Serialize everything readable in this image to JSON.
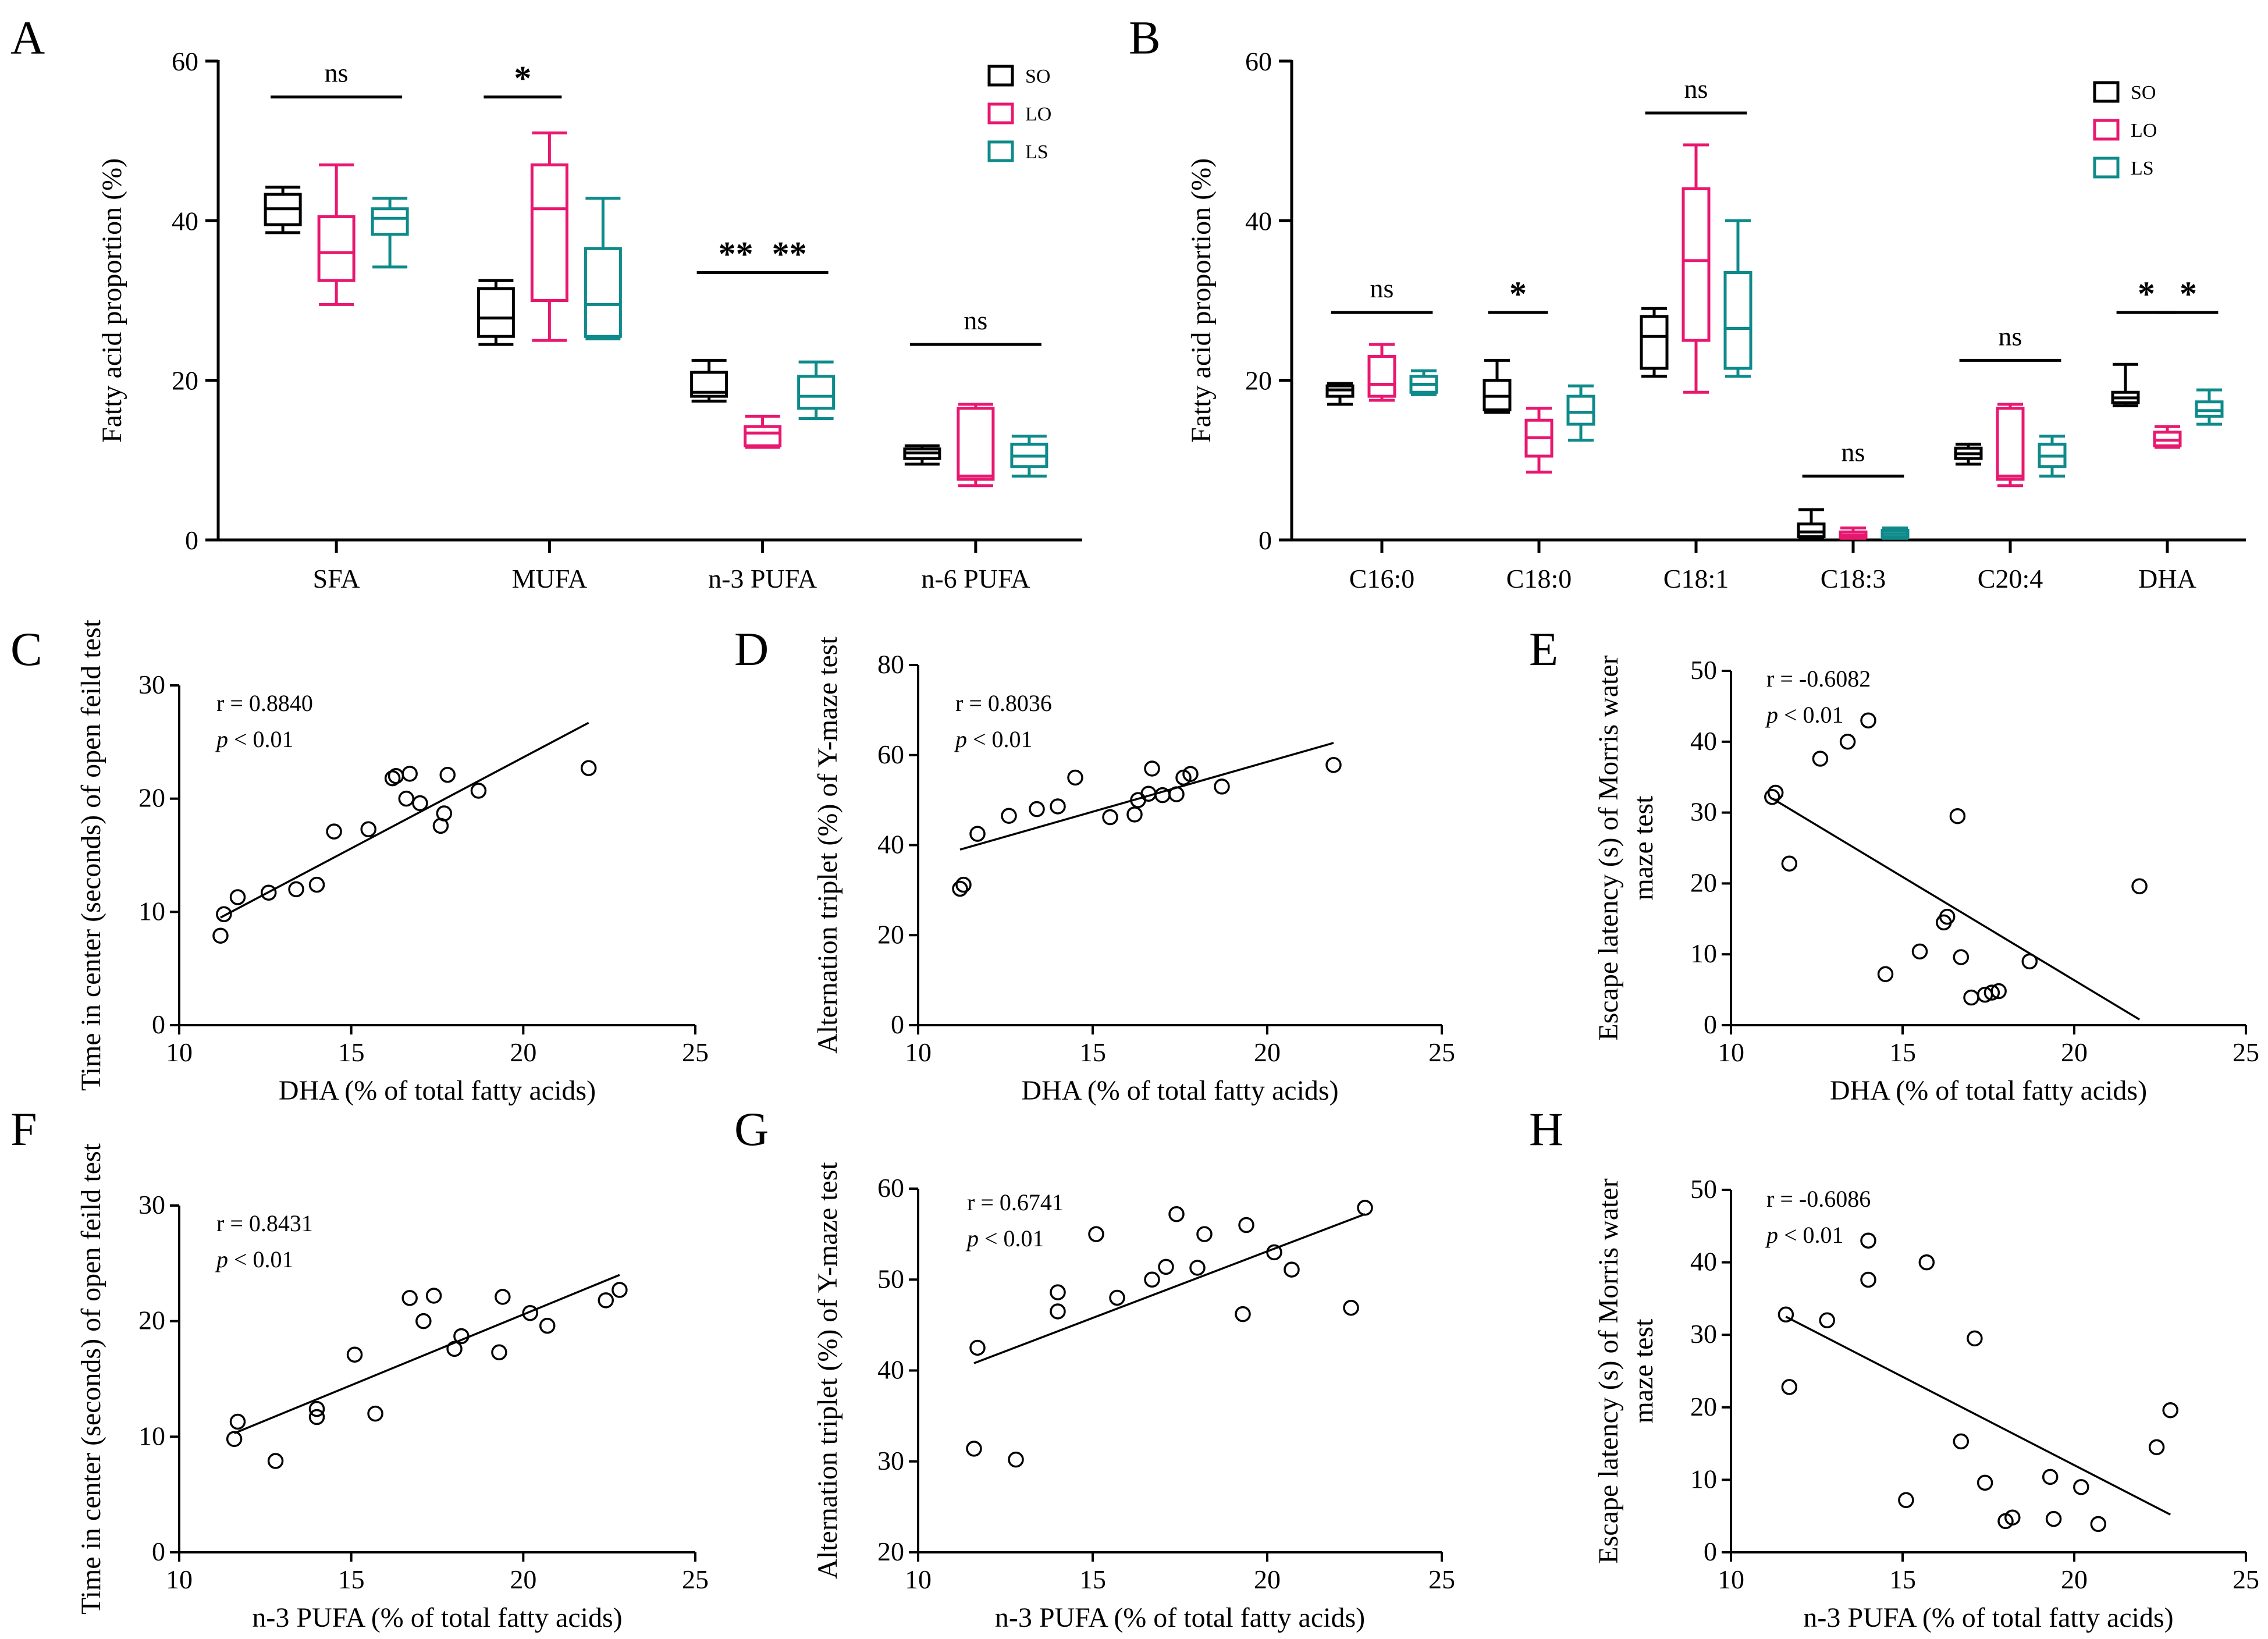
{
  "chart_data": [
    {
      "id": "A",
      "type": "box",
      "panel_label": "A",
      "ylabel": "Fatty acid proportion (%)",
      "ylim": [
        0,
        60
      ],
      "yticks": [
        0,
        20,
        40,
        60
      ],
      "categories": [
        "SFA",
        "MUFA",
        "n-3 PUFA",
        "n-6 PUFA"
      ],
      "legend": [
        {
          "name": "SO",
          "color": "#000000"
        },
        {
          "name": "LO",
          "color": "#e8176f"
        },
        {
          "name": "LS",
          "color": "#0e8a8a"
        }
      ],
      "boxes": [
        {
          "cat": 0,
          "group": 0,
          "min": 38.5,
          "q1": 39.5,
          "median": 41.5,
          "q3": 43.3,
          "max": 44.2
        },
        {
          "cat": 0,
          "group": 1,
          "min": 29.5,
          "q1": 32.5,
          "median": 36.0,
          "q3": 40.5,
          "max": 47.0
        },
        {
          "cat": 0,
          "group": 2,
          "min": 34.2,
          "q1": 38.3,
          "median": 40.3,
          "q3": 41.5,
          "max": 42.8
        },
        {
          "cat": 1,
          "group": 0,
          "min": 24.5,
          "q1": 25.5,
          "median": 27.8,
          "q3": 31.5,
          "max": 32.5
        },
        {
          "cat": 1,
          "group": 1,
          "min": 25.0,
          "q1": 30.0,
          "median": 41.5,
          "q3": 47.0,
          "max": 51.0
        },
        {
          "cat": 1,
          "group": 2,
          "min": 25.2,
          "q1": 25.5,
          "median": 29.5,
          "q3": 36.5,
          "max": 42.8
        },
        {
          "cat": 2,
          "group": 0,
          "min": 17.4,
          "q1": 18.0,
          "median": 18.5,
          "q3": 21.0,
          "max": 22.5
        },
        {
          "cat": 2,
          "group": 1,
          "min": 11.6,
          "q1": 11.8,
          "median": 13.4,
          "q3": 14.2,
          "max": 15.5
        },
        {
          "cat": 2,
          "group": 2,
          "min": 15.2,
          "q1": 16.5,
          "median": 18.0,
          "q3": 20.5,
          "max": 22.3
        },
        {
          "cat": 3,
          "group": 0,
          "min": 9.5,
          "q1": 10.2,
          "median": 10.9,
          "q3": 11.4,
          "max": 11.8
        },
        {
          "cat": 3,
          "group": 1,
          "min": 6.8,
          "q1": 7.6,
          "median": 8.0,
          "q3": 16.5,
          "max": 17.0
        },
        {
          "cat": 3,
          "group": 2,
          "min": 8.0,
          "q1": 9.2,
          "median": 10.5,
          "q3": 12.0,
          "max": 13.0
        }
      ],
      "significance": [
        {
          "label": "ns",
          "from_cat": 0,
          "from_group": 0,
          "to_cat": 0,
          "to_group": 2,
          "y": 55.5
        },
        {
          "label": "*",
          "from_cat": 1,
          "from_group": 0,
          "to_cat": 1,
          "to_group": 1,
          "y": 55.5
        },
        {
          "label": "**",
          "from_cat": 2,
          "from_group": 0,
          "to_cat": 2,
          "to_group": 1,
          "y": 33.5
        },
        {
          "label": "**",
          "from_cat": 2,
          "from_group": 1,
          "to_cat": 2,
          "to_group": 2,
          "y": 33.5
        },
        {
          "label": "ns",
          "from_cat": 3,
          "from_group": 0,
          "to_cat": 3,
          "to_group": 2,
          "y": 24.5
        }
      ]
    },
    {
      "id": "B",
      "type": "box",
      "panel_label": "B",
      "ylabel": "Fatty acid proportion (%)",
      "ylim": [
        0,
        60
      ],
      "yticks": [
        0,
        20,
        40,
        60
      ],
      "categories": [
        "C16:0",
        "C18:0",
        "C18:1",
        "C18:3",
        "C20:4",
        "DHA"
      ],
      "legend": [
        {
          "name": "SO",
          "color": "#000000"
        },
        {
          "name": "LO",
          "color": "#e8176f"
        },
        {
          "name": "LS",
          "color": "#0e8a8a"
        }
      ],
      "boxes": [
        {
          "cat": 0,
          "group": 0,
          "min": 17.0,
          "q1": 18.0,
          "median": 18.8,
          "q3": 19.3,
          "max": 19.6
        },
        {
          "cat": 0,
          "group": 1,
          "min": 17.5,
          "q1": 18.0,
          "median": 19.5,
          "q3": 23.0,
          "max": 24.5
        },
        {
          "cat": 0,
          "group": 2,
          "min": 18.2,
          "q1": 18.5,
          "median": 19.5,
          "q3": 20.5,
          "max": 21.2
        },
        {
          "cat": 1,
          "group": 0,
          "min": 16.0,
          "q1": 16.3,
          "median": 18.0,
          "q3": 20.0,
          "max": 22.5
        },
        {
          "cat": 1,
          "group": 1,
          "min": 8.5,
          "q1": 10.5,
          "median": 12.8,
          "q3": 15.0,
          "max": 16.5
        },
        {
          "cat": 1,
          "group": 2,
          "min": 12.5,
          "q1": 14.5,
          "median": 16.0,
          "q3": 18.0,
          "max": 19.3
        },
        {
          "cat": 2,
          "group": 0,
          "min": 20.5,
          "q1": 21.5,
          "median": 25.5,
          "q3": 28.0,
          "max": 29.0
        },
        {
          "cat": 2,
          "group": 1,
          "min": 18.5,
          "q1": 25.0,
          "median": 35.0,
          "q3": 44.0,
          "max": 49.5
        },
        {
          "cat": 2,
          "group": 2,
          "min": 20.5,
          "q1": 21.5,
          "median": 26.5,
          "q3": 33.5,
          "max": 40.0
        },
        {
          "cat": 3,
          "group": 0,
          "min": 0.2,
          "q1": 0.4,
          "median": 1.0,
          "q3": 2.0,
          "max": 3.8
        },
        {
          "cat": 3,
          "group": 1,
          "min": 0.2,
          "q1": 0.3,
          "median": 0.6,
          "q3": 1.0,
          "max": 1.5
        },
        {
          "cat": 3,
          "group": 2,
          "min": 0.2,
          "q1": 0.4,
          "median": 0.8,
          "q3": 1.2,
          "max": 1.5
        },
        {
          "cat": 4,
          "group": 0,
          "min": 9.5,
          "q1": 10.2,
          "median": 10.8,
          "q3": 11.5,
          "max": 12.0
        },
        {
          "cat": 4,
          "group": 1,
          "min": 6.8,
          "q1": 7.6,
          "median": 8.0,
          "q3": 16.5,
          "max": 17.0
        },
        {
          "cat": 4,
          "group": 2,
          "min": 8.0,
          "q1": 9.2,
          "median": 10.5,
          "q3": 12.0,
          "max": 13.0
        },
        {
          "cat": 5,
          "group": 0,
          "min": 16.8,
          "q1": 17.2,
          "median": 17.8,
          "q3": 18.5,
          "max": 22.0
        },
        {
          "cat": 5,
          "group": 1,
          "min": 11.6,
          "q1": 11.8,
          "median": 12.5,
          "q3": 13.5,
          "max": 14.2
        },
        {
          "cat": 5,
          "group": 2,
          "min": 14.5,
          "q1": 15.5,
          "median": 16.2,
          "q3": 17.3,
          "max": 18.8
        }
      ],
      "significance": [
        {
          "label": "ns",
          "from_cat": 0,
          "from_group": 0,
          "to_cat": 0,
          "to_group": 2,
          "y": 28.5
        },
        {
          "label": "*",
          "from_cat": 1,
          "from_group": 0,
          "to_cat": 1,
          "to_group": 1,
          "y": 28.5
        },
        {
          "label": "ns",
          "from_cat": 2,
          "from_group": 0,
          "to_cat": 2,
          "to_group": 2,
          "y": 53.5
        },
        {
          "label": "ns",
          "from_cat": 3,
          "from_group": 0,
          "to_cat": 3,
          "to_group": 2,
          "y": 8.0
        },
        {
          "label": "ns",
          "from_cat": 4,
          "from_group": 0,
          "to_cat": 4,
          "to_group": 2,
          "y": 22.5
        },
        {
          "label": "*",
          "from_cat": 5,
          "from_group": 0,
          "to_cat": 5,
          "to_group": 1,
          "y": 28.5
        },
        {
          "label": "*",
          "from_cat": 5,
          "from_group": 1,
          "to_cat": 5,
          "to_group": 2,
          "y": 28.5
        }
      ]
    },
    {
      "id": "C",
      "type": "scatter",
      "panel_label": "C",
      "xlabel": "DHA  (% of total fatty acids)",
      "ylabel": [
        "Time in center (seconds) of open feild test"
      ],
      "xlim": [
        10,
        25
      ],
      "xticks": [
        10,
        15,
        20,
        25
      ],
      "ylim": [
        0,
        30
      ],
      "yticks": [
        0,
        10,
        20,
        30
      ],
      "r_text": "r = 0.8840",
      "p_prefix": "p",
      "p_suffix": " < 0.01",
      "fit": [
        [
          11.2,
          9.5
        ],
        [
          21.9,
          26.7
        ]
      ],
      "x": [
        11.2,
        11.3,
        11.7,
        12.6,
        13.4,
        14.0,
        14.5,
        15.5,
        16.2,
        16.3,
        16.6,
        16.7,
        17.0,
        17.6,
        17.7,
        17.8,
        18.7,
        21.9
      ],
      "y": [
        7.9,
        9.8,
        11.3,
        11.7,
        12.0,
        12.4,
        17.1,
        17.3,
        21.8,
        22.0,
        20.0,
        22.2,
        19.6,
        17.6,
        18.7,
        22.1,
        20.7,
        22.7
      ]
    },
    {
      "id": "D",
      "type": "scatter",
      "panel_label": "D",
      "xlabel": "DHA  (% of total fatty acids)",
      "ylabel": [
        "Alternation triplet (%) of Y-maze test"
      ],
      "xlim": [
        10,
        25
      ],
      "xticks": [
        10,
        15,
        20,
        25
      ],
      "ylim": [
        0,
        80
      ],
      "yticks": [
        0,
        20,
        40,
        60,
        80
      ],
      "r_text": "r = 0.8036",
      "p_prefix": "p",
      "p_suffix": " < 0.01",
      "fit": [
        [
          11.2,
          39.0
        ],
        [
          21.9,
          62.7
        ]
      ],
      "x": [
        11.2,
        11.3,
        11.7,
        12.6,
        13.4,
        14.0,
        14.5,
        15.5,
        16.2,
        16.3,
        16.6,
        16.7,
        17.0,
        17.4,
        17.6,
        17.8,
        18.7,
        21.9
      ],
      "y": [
        30.3,
        31.2,
        42.5,
        46.5,
        48.0,
        48.6,
        55.0,
        46.2,
        46.8,
        50.0,
        51.4,
        57.0,
        51.1,
        51.3,
        55.0,
        55.8,
        53.0,
        57.8
      ]
    },
    {
      "id": "E",
      "type": "scatter",
      "panel_label": "E",
      "xlabel": "DHA  (% of total fatty acids)",
      "ylabel": [
        "Escape latency (s) of Morris water",
        "maze test"
      ],
      "xlim": [
        10,
        25
      ],
      "xticks": [
        10,
        15,
        20,
        25
      ],
      "ylim": [
        0,
        50
      ],
      "yticks": [
        0,
        10,
        20,
        30,
        40,
        50
      ],
      "r_text": "r = -0.6082",
      "p_prefix": "p",
      "p_suffix": " < 0.01",
      "fit": [
        [
          11.2,
          32.0
        ],
        [
          21.9,
          0.8
        ]
      ],
      "x": [
        11.2,
        11.3,
        11.7,
        12.6,
        13.4,
        14.0,
        14.5,
        15.5,
        16.2,
        16.3,
        16.6,
        16.7,
        17.0,
        17.4,
        17.6,
        17.8,
        18.7,
        21.9
      ],
      "y": [
        32.2,
        32.8,
        22.8,
        37.6,
        40.0,
        43.0,
        7.2,
        10.4,
        14.5,
        15.3,
        29.5,
        9.6,
        3.9,
        4.3,
        4.6,
        4.8,
        9.0,
        19.6
      ]
    },
    {
      "id": "F",
      "type": "scatter",
      "panel_label": "F",
      "xlabel": "n-3 PUFA  (% of total fatty acids)",
      "ylabel": [
        "Time in center (seconds) of open feild test"
      ],
      "xlim": [
        10,
        25
      ],
      "xticks": [
        10,
        15,
        20,
        25
      ],
      "ylim": [
        0,
        30
      ],
      "yticks": [
        0,
        10,
        20,
        30
      ],
      "r_text": "r = 0.8431",
      "p_prefix": "p",
      "p_suffix": " < 0.01",
      "fit": [
        [
          11.6,
          10.3
        ],
        [
          22.8,
          24.0
        ]
      ],
      "x": [
        11.6,
        11.7,
        12.8,
        14.0,
        14.0,
        15.1,
        15.7,
        16.7,
        17.1,
        17.4,
        18.0,
        18.2,
        19.3,
        19.4,
        20.2,
        20.7,
        22.4,
        22.8
      ],
      "y": [
        9.8,
        11.3,
        7.9,
        12.4,
        11.7,
        17.1,
        12.0,
        22.0,
        20.0,
        22.2,
        17.6,
        18.7,
        17.3,
        22.1,
        20.7,
        19.6,
        21.8,
        22.7
      ]
    },
    {
      "id": "G",
      "type": "scatter",
      "panel_label": "G",
      "xlabel": "n-3 PUFA  (% of total fatty acids)",
      "ylabel": [
        "Alternation triplet (%) of Y-maze test"
      ],
      "xlim": [
        10,
        25
      ],
      "xticks": [
        10,
        15,
        20,
        25
      ],
      "ylim": [
        20,
        60
      ],
      "yticks": [
        20,
        30,
        40,
        50,
        60
      ],
      "r_text": "r = 0.6741",
      "p_prefix": "p",
      "p_suffix": " < 0.01",
      "fit": [
        [
          11.6,
          40.8
        ],
        [
          22.8,
          57.2
        ]
      ],
      "x": [
        11.6,
        11.7,
        12.8,
        14.0,
        14.0,
        15.1,
        15.7,
        16.7,
        17.1,
        17.4,
        18.0,
        18.2,
        19.3,
        19.4,
        20.2,
        20.7,
        22.4,
        22.8
      ],
      "y": [
        31.4,
        42.5,
        30.2,
        48.6,
        46.5,
        55.0,
        48.0,
        50.0,
        51.4,
        57.2,
        51.3,
        55.0,
        46.2,
        56.0,
        53.0,
        51.1,
        46.9,
        57.9
      ]
    },
    {
      "id": "H",
      "type": "scatter",
      "panel_label": "H",
      "xlabel": "n-3 PUFA  (% of total fatty acids)",
      "ylabel": [
        "Escape latency (s) of Morris water",
        "maze test"
      ],
      "xlim": [
        10,
        25
      ],
      "xticks": [
        10,
        15,
        20,
        25
      ],
      "ylim": [
        0,
        50
      ],
      "yticks": [
        0,
        10,
        20,
        30,
        40,
        50
      ],
      "r_text": "r = -0.6086",
      "p_prefix": "p",
      "p_suffix": " < 0.01",
      "fit": [
        [
          11.6,
          32.5
        ],
        [
          22.8,
          5.2
        ]
      ],
      "x": [
        11.6,
        11.7,
        12.8,
        14.0,
        14.0,
        15.1,
        15.7,
        16.7,
        17.1,
        17.4,
        18.0,
        18.2,
        19.3,
        19.4,
        20.2,
        20.7,
        22.4,
        22.8
      ],
      "y": [
        32.8,
        22.8,
        32.0,
        43.0,
        37.6,
        7.2,
        40.0,
        15.3,
        29.5,
        9.6,
        4.3,
        4.8,
        10.4,
        4.6,
        9.0,
        3.9,
        14.5,
        19.6
      ]
    }
  ]
}
